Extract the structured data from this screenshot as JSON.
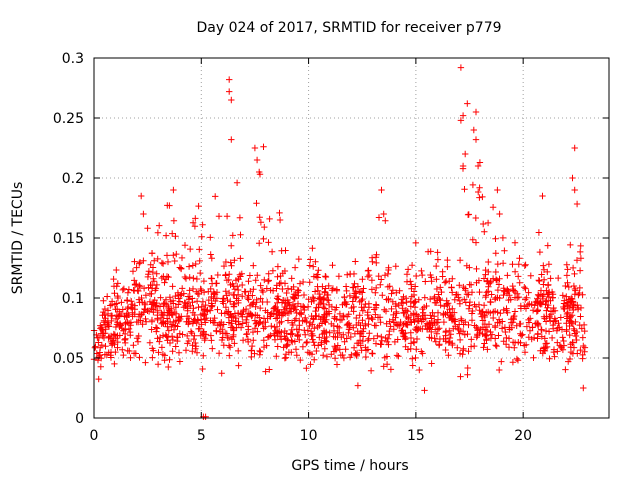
{
  "chart_data": {
    "type": "scatter",
    "title": "Day 024 of 2017, SRMTID for receiver p779",
    "xlabel": "GPS time / hours",
    "ylabel": "SRMTID / TECUs",
    "xlim": [
      0,
      24
    ],
    "ylim": [
      0,
      0.3
    ],
    "xticks": [
      0,
      5,
      10,
      15,
      20
    ],
    "xtick_labels": [
      "0",
      "5",
      "10",
      "15",
      "20"
    ],
    "yticks": [
      0,
      0.05,
      0.1,
      0.15,
      0.2,
      0.25,
      0.3
    ],
    "ytick_labels": [
      "0",
      "0.05",
      "0.1",
      "0.15",
      "0.2",
      "0.25",
      "0.3"
    ],
    "grid": true,
    "marker": "+",
    "series_color": "#ff0000",
    "baseline_range": [
      0.03,
      0.12
    ],
    "envelope": [
      {
        "x": 0.0,
        "y": 0.085
      },
      {
        "x": 0.5,
        "y": 0.1
      },
      {
        "x": 1.0,
        "y": 0.13
      },
      {
        "x": 1.5,
        "y": 0.12
      },
      {
        "x": 2.0,
        "y": 0.14
      },
      {
        "x": 2.2,
        "y": 0.185
      },
      {
        "x": 2.7,
        "y": 0.15
      },
      {
        "x": 3.2,
        "y": 0.18
      },
      {
        "x": 3.6,
        "y": 0.19
      },
      {
        "x": 4.0,
        "y": 0.16
      },
      {
        "x": 4.5,
        "y": 0.15
      },
      {
        "x": 4.8,
        "y": 0.185
      },
      {
        "x": 5.2,
        "y": 0.17
      },
      {
        "x": 5.5,
        "y": 0.195
      },
      {
        "x": 6.0,
        "y": 0.18
      },
      {
        "x": 6.3,
        "y": 0.282
      },
      {
        "x": 6.8,
        "y": 0.19
      },
      {
        "x": 7.2,
        "y": 0.2
      },
      {
        "x": 7.6,
        "y": 0.225
      },
      {
        "x": 8.0,
        "y": 0.21
      },
      {
        "x": 8.5,
        "y": 0.185
      },
      {
        "x": 9.0,
        "y": 0.16
      },
      {
        "x": 9.5,
        "y": 0.14
      },
      {
        "x": 10.0,
        "y": 0.155
      },
      {
        "x": 10.5,
        "y": 0.15
      },
      {
        "x": 11.0,
        "y": 0.14
      },
      {
        "x": 11.5,
        "y": 0.13
      },
      {
        "x": 12.0,
        "y": 0.14
      },
      {
        "x": 12.5,
        "y": 0.135
      },
      {
        "x": 13.0,
        "y": 0.14
      },
      {
        "x": 13.4,
        "y": 0.19
      },
      {
        "x": 14.0,
        "y": 0.13
      },
      {
        "x": 14.5,
        "y": 0.12
      },
      {
        "x": 15.0,
        "y": 0.16
      },
      {
        "x": 15.5,
        "y": 0.14
      },
      {
        "x": 16.0,
        "y": 0.16
      },
      {
        "x": 16.5,
        "y": 0.14
      },
      {
        "x": 17.0,
        "y": 0.15
      },
      {
        "x": 17.3,
        "y": 0.29
      },
      {
        "x": 17.8,
        "y": 0.255
      },
      {
        "x": 18.3,
        "y": 0.16
      },
      {
        "x": 18.8,
        "y": 0.19
      },
      {
        "x": 19.3,
        "y": 0.16
      },
      {
        "x": 19.8,
        "y": 0.14
      },
      {
        "x": 20.3,
        "y": 0.15
      },
      {
        "x": 20.8,
        "y": 0.185
      },
      {
        "x": 21.3,
        "y": 0.13
      },
      {
        "x": 21.8,
        "y": 0.11
      },
      {
        "x": 22.3,
        "y": 0.225
      },
      {
        "x": 22.8,
        "y": 0.12
      }
    ],
    "outliers": [
      {
        "x": 5.1,
        "y": 0.001
      },
      {
        "x": 5.2,
        "y": 0.001
      },
      {
        "x": 6.3,
        "y": 0.282
      },
      {
        "x": 6.3,
        "y": 0.272
      },
      {
        "x": 6.4,
        "y": 0.265
      },
      {
        "x": 6.4,
        "y": 0.232
      },
      {
        "x": 7.5,
        "y": 0.225
      },
      {
        "x": 7.6,
        "y": 0.215
      },
      {
        "x": 7.7,
        "y": 0.205
      },
      {
        "x": 7.9,
        "y": 0.226
      },
      {
        "x": 17.1,
        "y": 0.292
      },
      {
        "x": 17.2,
        "y": 0.252
      },
      {
        "x": 17.1,
        "y": 0.248
      },
      {
        "x": 17.3,
        "y": 0.22
      },
      {
        "x": 17.2,
        "y": 0.21
      },
      {
        "x": 17.8,
        "y": 0.255
      },
      {
        "x": 17.7,
        "y": 0.24
      },
      {
        "x": 17.8,
        "y": 0.232
      },
      {
        "x": 17.9,
        "y": 0.21
      },
      {
        "x": 22.4,
        "y": 0.225
      },
      {
        "x": 22.3,
        "y": 0.2
      },
      {
        "x": 22.4,
        "y": 0.19
      },
      {
        "x": 13.4,
        "y": 0.19
      },
      {
        "x": 13.5,
        "y": 0.17
      },
      {
        "x": 2.2,
        "y": 0.185
      },
      {
        "x": 2.3,
        "y": 0.17
      },
      {
        "x": 3.7,
        "y": 0.19
      },
      {
        "x": 18.8,
        "y": 0.19
      },
      {
        "x": 18.9,
        "y": 0.17
      },
      {
        "x": 20.9,
        "y": 0.185
      },
      {
        "x": 15.4,
        "y": 0.023
      },
      {
        "x": 12.3,
        "y": 0.027
      },
      {
        "x": 22.8,
        "y": 0.025
      }
    ],
    "point_count": 1900,
    "x_max_data": 22.9
  }
}
